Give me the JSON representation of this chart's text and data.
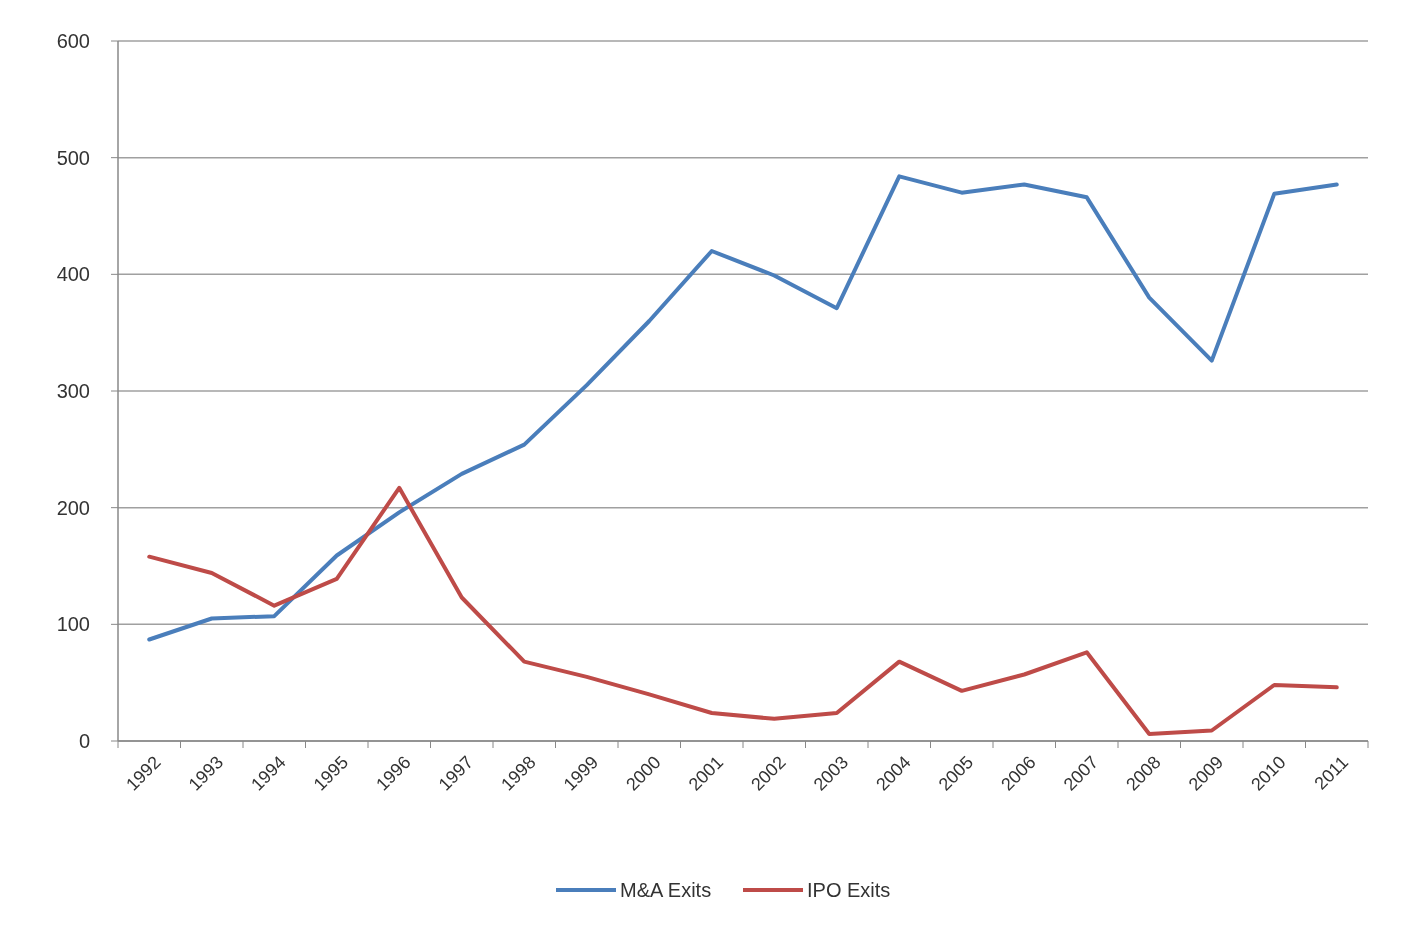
{
  "chart_data": {
    "type": "line",
    "categories": [
      "1992",
      "1993",
      "1994",
      "1995",
      "1996",
      "1997",
      "1998",
      "1999",
      "2000",
      "2001",
      "2002",
      "2003",
      "2004",
      "2005",
      "2006",
      "2007",
      "2008",
      "2009",
      "2010",
      "2011"
    ],
    "series": [
      {
        "name": "M&A Exits",
        "color": "#4a7ebb",
        "values": [
          87,
          105,
          107,
          159,
          196,
          229,
          254,
          305,
          360,
          420,
          399,
          371,
          484,
          470,
          477,
          466,
          380,
          326,
          469,
          477
        ]
      },
      {
        "name": "IPO Exits",
        "color": "#be4b48",
        "values": [
          158,
          144,
          116,
          139,
          217,
          123,
          68,
          55,
          40,
          24,
          19,
          24,
          68,
          43,
          57,
          76,
          6,
          9,
          48,
          46
        ]
      }
    ],
    "ylim": [
      0,
      600
    ],
    "yticks": [
      0,
      100,
      200,
      300,
      400,
      500,
      600
    ],
    "grid": "y",
    "legend": "bottom",
    "marker": "none"
  }
}
